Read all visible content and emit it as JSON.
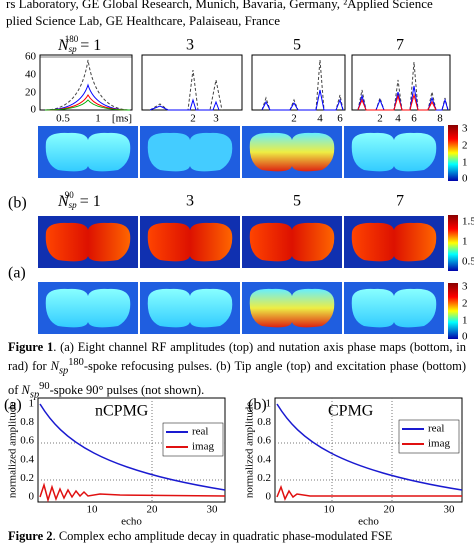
{
  "header": {
    "line1": "rs Laboratory, GE Global Research, Munich, Bavaria, Germany, ²Applied Science",
    "line2": "plied Science Lab, GE Healthcare, Palaiseau, France"
  },
  "figure1": {
    "rf_panels": {
      "first_label": {
        "symbol": "N",
        "sub": "sp",
        "sup": "180",
        "rest": "= 1"
      },
      "labels": [
        "3",
        "5",
        "7"
      ],
      "yticks": [
        "60",
        "40",
        "20",
        "0"
      ],
      "xticks": [
        [
          "0.5",
          "1",
          "[ms]"
        ],
        [
          "2",
          "3"
        ],
        [
          "2",
          "4",
          "6"
        ],
        [
          "2",
          "4",
          "6",
          "8"
        ]
      ]
    },
    "colorbar_top": [
      "3",
      "2",
      "1",
      "0"
    ],
    "panel_b": {
      "tag": "(b)",
      "first_label": {
        "symbol": "N",
        "sub": "sp",
        "sup": "90",
        "rest": "= 1"
      },
      "labels": [
        "3",
        "5",
        "7"
      ]
    },
    "colorbar_mid": [
      "1.5",
      "1",
      "0.5"
    ],
    "panel_a": {
      "tag": "(a)"
    },
    "colorbar_bottom": [
      "3",
      "2",
      "1",
      "0"
    ],
    "caption": {
      "label": "Figure 1",
      "text1": ". (a) Eight channel RF amplitudes (top) and nutation axis phase maps (bottom, in rad) for ",
      "sym1": {
        "symbol": "N",
        "sub": "sp",
        "sup": "180"
      },
      "text2": "-spoke refocusing pulses. (b) Tip angle (top) and excitation phase (bottom) of ",
      "sym2": {
        "symbol": "N",
        "sub": "sp",
        "sup": "90"
      },
      "text3": "-spoke 90° pulses (not shown)."
    }
  },
  "figure2": {
    "plots": [
      {
        "tag": "(a)",
        "title": "nCPMG"
      },
      {
        "tag": "(b)",
        "title": "CPMG"
      }
    ],
    "legend": [
      "real",
      "imag"
    ],
    "ylabel": "normalized amplitude",
    "xlabel": "echo",
    "yticks": [
      "1",
      "0.8",
      "0.6",
      "0.4",
      "0.2",
      "0"
    ],
    "xticks": [
      "10",
      "20",
      "30"
    ],
    "caption": {
      "label": "Figure 2",
      "text": ". Complex echo amplitude decay in quadratic phase-modulated FSE"
    }
  }
}
